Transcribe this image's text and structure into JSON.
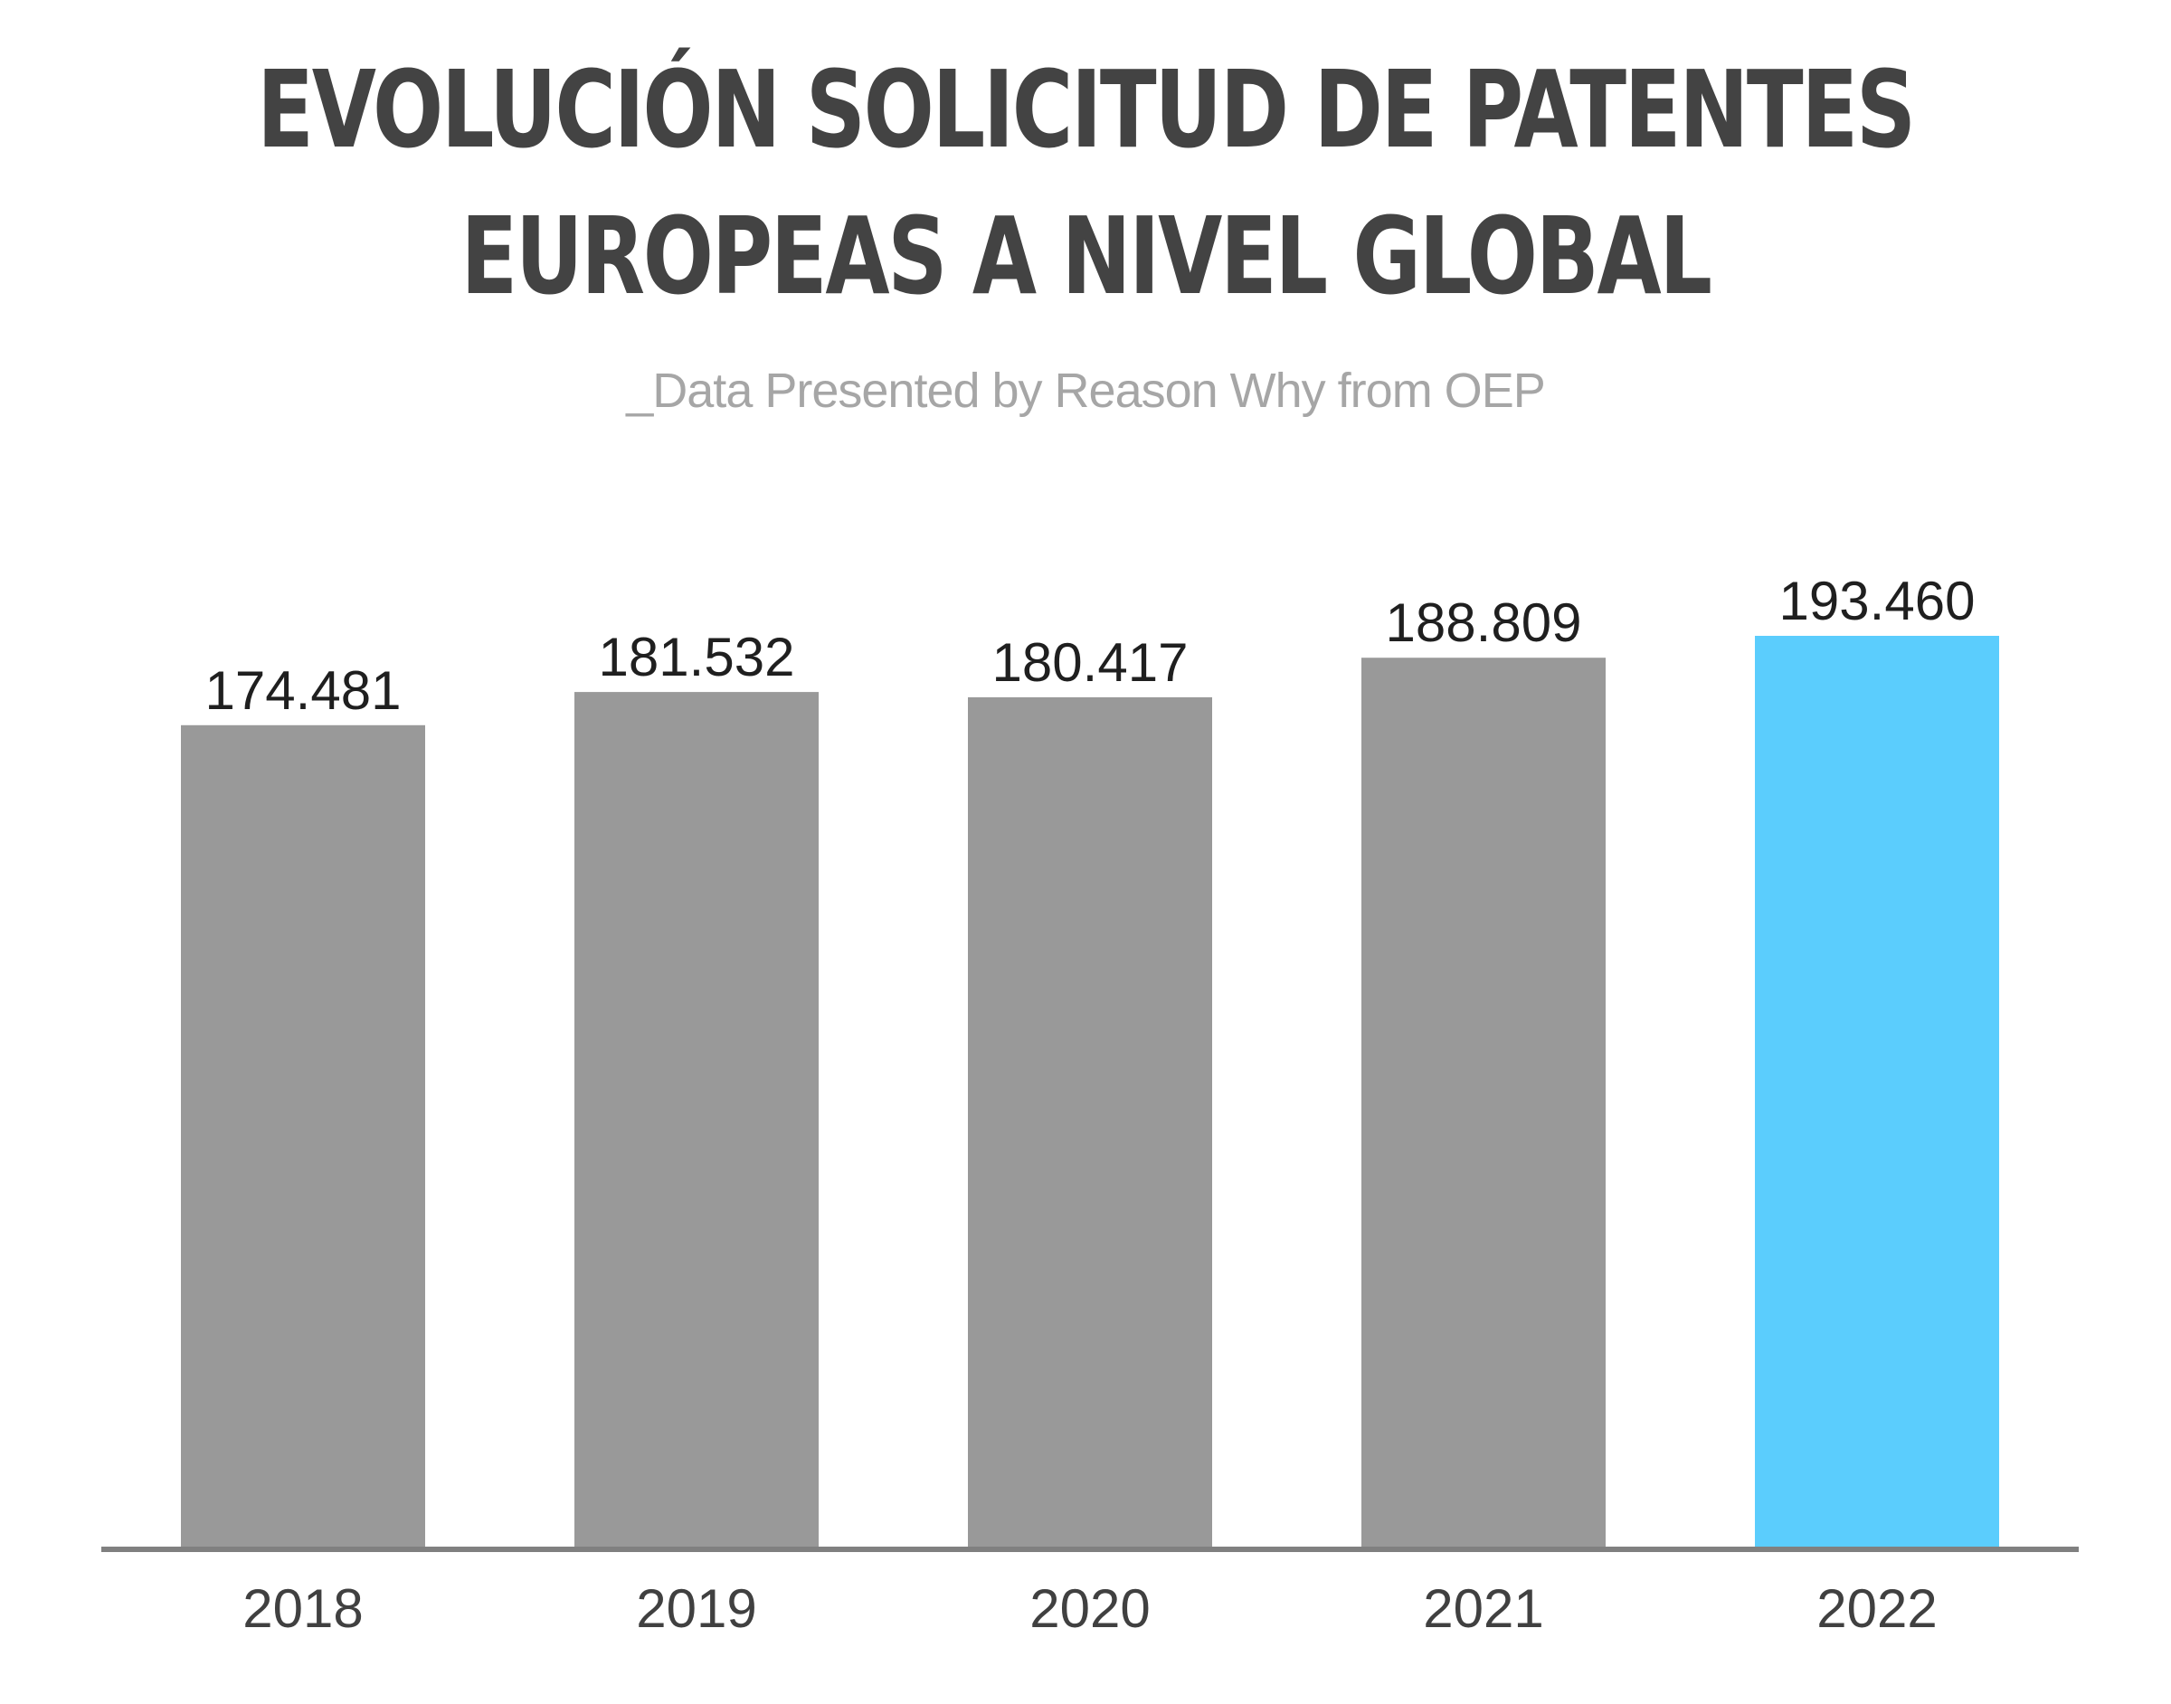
{
  "title_lines": [
    "EVOLUCIÓN SOLICITUD DE PATENTES",
    "EUROPEAS A NIVEL GLOBAL"
  ],
  "subtitle": "_Data Presented by Reason Why from OEP",
  "colors": {
    "bar": "#999999",
    "highlight": "#5bcdfd",
    "axis": "#808080",
    "title": "#434343",
    "subtitle": "#a6a6a6"
  },
  "chart_data": {
    "type": "bar",
    "title": "EVOLUCIÓN SOLICITUD DE PATENTES EUROPEAS A NIVEL GLOBAL",
    "subtitle": "_Data Presented by Reason Why from OEP",
    "categories": [
      "2018",
      "2019",
      "2020",
      "2021",
      "2022"
    ],
    "values": [
      174481,
      181532,
      180417,
      188809,
      193460
    ],
    "value_labels": [
      "174.481",
      "181.532",
      "180.417",
      "188.809",
      "193.460"
    ],
    "highlighted_category": "2022",
    "ylim": [
      0,
      193460
    ],
    "grid": false,
    "legend": "none"
  }
}
